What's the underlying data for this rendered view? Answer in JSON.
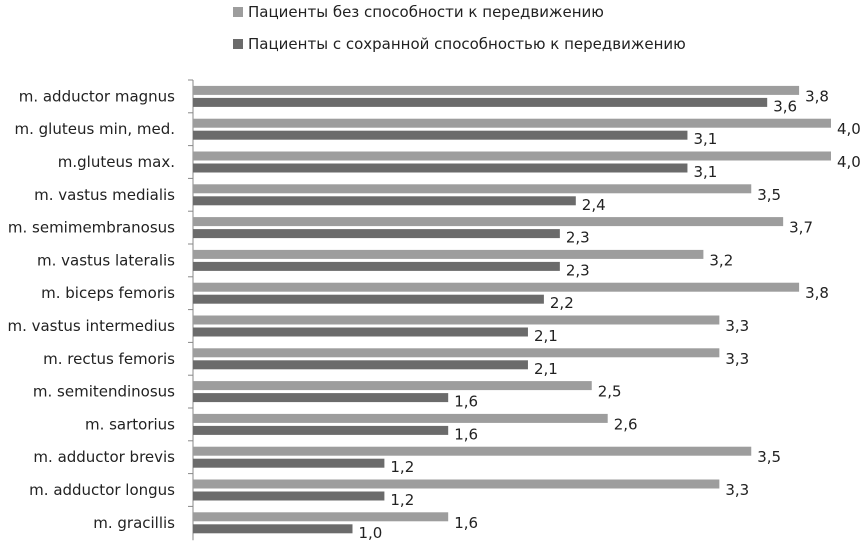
{
  "chart_data": {
    "type": "bar",
    "orientation": "horizontal",
    "title": "",
    "xlabel": "",
    "ylabel": "",
    "xlim": [
      0,
      4.0
    ],
    "grid": false,
    "legend_position": "top",
    "categories": [
      "m. adductor magnus",
      "m. gluteus min, med.",
      "m.gluteus max.",
      "m. vastus medialis",
      "m. semimembranosus",
      "m. vastus lateralis",
      "m. biceps femoris",
      "m. vastus intermedius",
      "m. rectus femoris",
      "m. semitendinosus",
      "m. sartorius",
      "m. adductor brevis",
      "m. adductor longus",
      "m. gracillis"
    ],
    "series": [
      {
        "name": "Пациенты без способности к передвижению",
        "color": "#9d9d9d",
        "values": [
          3.8,
          4.0,
          4.0,
          3.5,
          3.7,
          3.2,
          3.8,
          3.3,
          3.3,
          2.5,
          2.6,
          3.5,
          3.3,
          1.6
        ],
        "value_labels": [
          "3,8",
          "4,0",
          "4,0",
          "3,5",
          "3,7",
          "3,2",
          "3,8",
          "3,3",
          "3,3",
          "2,5",
          "2,6",
          "3,5",
          "3,3",
          "1,6"
        ]
      },
      {
        "name": "Пациенты с сохранной способностью к передвижению",
        "color": "#6b6b6b",
        "values": [
          3.6,
          3.1,
          3.1,
          2.4,
          2.3,
          2.3,
          2.2,
          2.1,
          2.1,
          1.6,
          1.6,
          1.2,
          1.2,
          1.0
        ],
        "value_labels": [
          "3,6",
          "3,1",
          "3,1",
          "2,4",
          "2,3",
          "2,3",
          "2,2",
          "2,1",
          "2,1",
          "1,6",
          "1,6",
          "1,2",
          "1,2",
          "1,0"
        ]
      }
    ]
  }
}
